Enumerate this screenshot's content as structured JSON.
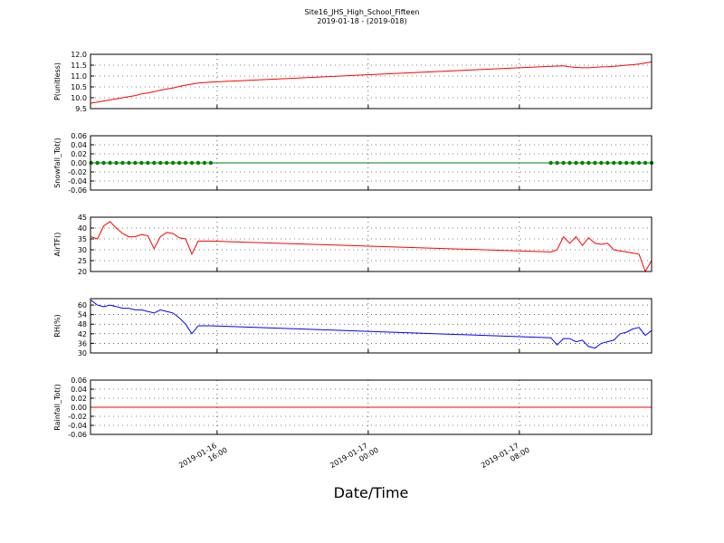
{
  "title": "Site16_JHS_High_School_Fifteen",
  "subtitle": "2019-01-18 - (2019-018)",
  "xlabel": "Date/Time",
  "xlim": [
    "2019-01-16 09:18",
    "2019-01-17 15:00"
  ],
  "xticks": [
    {
      "value": "2019-01-16 16:00",
      "label": "2019-01-16\n16:00"
    },
    {
      "value": "2019-01-17 00:00",
      "label": "2019-01-17\n00:00"
    },
    {
      "value": "2019-01-17 08:00",
      "label": "2019-01-17\n08:00"
    }
  ],
  "chart_data": [
    {
      "type": "line",
      "ylabel": "P(unitless)",
      "ylim": [
        9.5,
        12.0
      ],
      "yticks": [
        9.5,
        {
          "value": 10.0,
          "label": "10.0"
        },
        10.5,
        {
          "value": 11.0,
          "label": "11.0"
        },
        11.5,
        {
          "value": 12.0,
          "label": "12.0"
        }
      ],
      "grid": true,
      "x": [
        "2019-01-16 09:20",
        "2019-01-16 09:40",
        "2019-01-16 10:00",
        "2019-01-16 10:20",
        "2019-01-16 10:40",
        "2019-01-16 11:00",
        "2019-01-16 11:20",
        "2019-01-16 11:40",
        "2019-01-16 12:00",
        "2019-01-16 12:20",
        "2019-01-16 12:40",
        "2019-01-16 13:00",
        "2019-01-16 13:20",
        "2019-01-16 13:40",
        "2019-01-16 14:00",
        "2019-01-16 14:20",
        "2019-01-16 14:40",
        "2019-01-16 15:00",
        "2019-01-16 15:20",
        "2019-01-16 15:40",
        "2019-01-17 09:40",
        "2019-01-17 10:00",
        "2019-01-17 10:20",
        "2019-01-17 10:40",
        "2019-01-17 11:00",
        "2019-01-17 11:20",
        "2019-01-17 11:40",
        "2019-01-17 12:00",
        "2019-01-17 12:20",
        "2019-01-17 12:40",
        "2019-01-17 13:00",
        "2019-01-17 13:20",
        "2019-01-17 13:40",
        "2019-01-17 14:00",
        "2019-01-17 14:20",
        "2019-01-17 14:40",
        "2019-01-17 15:00"
      ],
      "series": [
        {
          "color": "#ff0000",
          "markers": false,
          "values": [
            9.75,
            9.8,
            9.85,
            9.9,
            9.95,
            10.0,
            10.05,
            10.1,
            10.18,
            10.22,
            10.28,
            10.35,
            10.4,
            10.45,
            10.52,
            10.58,
            10.63,
            10.68,
            10.7,
            10.72,
            11.45,
            11.46,
            11.47,
            11.42,
            11.4,
            11.38,
            11.38,
            11.4,
            11.42,
            11.43,
            11.45,
            11.47,
            11.5,
            11.52,
            11.55,
            11.6,
            11.65
          ]
        }
      ]
    },
    {
      "type": "line",
      "ylabel": "Snowfall_Tot()",
      "ylim": [
        -0.06,
        0.06
      ],
      "yticks": [
        -0.06,
        -0.04,
        -0.02,
        {
          "value": 0,
          "label": "0.00"
        },
        0.02,
        0.04,
        0.06
      ],
      "grid": true,
      "x": [
        "2019-01-16 09:20",
        "2019-01-16 09:40",
        "2019-01-16 10:00",
        "2019-01-16 10:20",
        "2019-01-16 10:40",
        "2019-01-16 11:00",
        "2019-01-16 11:20",
        "2019-01-16 11:40",
        "2019-01-16 12:00",
        "2019-01-16 12:20",
        "2019-01-16 12:40",
        "2019-01-16 13:00",
        "2019-01-16 13:20",
        "2019-01-16 13:40",
        "2019-01-16 14:00",
        "2019-01-16 14:20",
        "2019-01-16 14:40",
        "2019-01-16 15:00",
        "2019-01-16 15:20",
        "2019-01-16 15:40",
        "2019-01-17 09:40",
        "2019-01-17 10:00",
        "2019-01-17 10:20",
        "2019-01-17 10:40",
        "2019-01-17 11:00",
        "2019-01-17 11:20",
        "2019-01-17 11:40",
        "2019-01-17 12:00",
        "2019-01-17 12:20",
        "2019-01-17 12:40",
        "2019-01-17 13:00",
        "2019-01-17 13:20",
        "2019-01-17 13:40",
        "2019-01-17 14:00",
        "2019-01-17 14:20",
        "2019-01-17 14:40",
        "2019-01-17 15:00"
      ],
      "series": [
        {
          "color": "#008000",
          "markers": true,
          "values": [
            0,
            0,
            0,
            0,
            0,
            0,
            0,
            0,
            0,
            0,
            0,
            0,
            0,
            0,
            0,
            0,
            0,
            0,
            0,
            0,
            0,
            0,
            0,
            0,
            0,
            0,
            0,
            0,
            0,
            0,
            0,
            0,
            0,
            0,
            0,
            0,
            0
          ]
        }
      ]
    },
    {
      "type": "line",
      "ylabel": "AirTF()",
      "ylim": [
        20,
        45
      ],
      "yticks": [
        20,
        25,
        30,
        35,
        40,
        45
      ],
      "grid": true,
      "x": [
        "2019-01-16 09:20",
        "2019-01-16 09:40",
        "2019-01-16 10:00",
        "2019-01-16 10:20",
        "2019-01-16 10:40",
        "2019-01-16 11:00",
        "2019-01-16 11:20",
        "2019-01-16 11:40",
        "2019-01-16 12:00",
        "2019-01-16 12:20",
        "2019-01-16 12:40",
        "2019-01-16 13:00",
        "2019-01-16 13:20",
        "2019-01-16 13:40",
        "2019-01-16 14:00",
        "2019-01-16 14:20",
        "2019-01-16 14:40",
        "2019-01-16 15:00",
        "2019-01-16 15:20",
        "2019-01-16 15:40",
        "2019-01-17 09:40",
        "2019-01-17 10:00",
        "2019-01-17 10:20",
        "2019-01-17 10:40",
        "2019-01-17 11:00",
        "2019-01-17 11:20",
        "2019-01-17 11:40",
        "2019-01-17 12:00",
        "2019-01-17 12:20",
        "2019-01-17 12:40",
        "2019-01-17 13:00",
        "2019-01-17 13:20",
        "2019-01-17 13:40",
        "2019-01-17 14:00",
        "2019-01-17 14:20",
        "2019-01-17 14:40",
        "2019-01-17 15:00"
      ],
      "series": [
        {
          "color": "#ff0000",
          "markers": false,
          "values": [
            36,
            35,
            41,
            43,
            40,
            37.5,
            36,
            36,
            37,
            36.5,
            30.5,
            36,
            38,
            37.5,
            35.5,
            35,
            28,
            34,
            34,
            34,
            29,
            30,
            36,
            33,
            36,
            32,
            35.5,
            33,
            32.5,
            33,
            30,
            29.5,
            29,
            28.5,
            28,
            20,
            25
          ]
        }
      ]
    },
    {
      "type": "line",
      "ylabel": "RH(%)",
      "ylim": [
        30,
        64
      ],
      "yticks": [
        30,
        36,
        42,
        48,
        54,
        60
      ],
      "grid": true,
      "x": [
        "2019-01-16 09:20",
        "2019-01-16 09:40",
        "2019-01-16 10:00",
        "2019-01-16 10:20",
        "2019-01-16 10:40",
        "2019-01-16 11:00",
        "2019-01-16 11:20",
        "2019-01-16 11:40",
        "2019-01-16 12:00",
        "2019-01-16 12:20",
        "2019-01-16 12:40",
        "2019-01-16 13:00",
        "2019-01-16 13:20",
        "2019-01-16 13:40",
        "2019-01-16 14:00",
        "2019-01-16 14:20",
        "2019-01-16 14:40",
        "2019-01-16 15:00",
        "2019-01-16 15:20",
        "2019-01-16 15:40",
        "2019-01-17 09:40",
        "2019-01-17 10:00",
        "2019-01-17 10:20",
        "2019-01-17 10:40",
        "2019-01-17 11:00",
        "2019-01-17 11:20",
        "2019-01-17 11:40",
        "2019-01-17 12:00",
        "2019-01-17 12:20",
        "2019-01-17 12:40",
        "2019-01-17 13:00",
        "2019-01-17 13:20",
        "2019-01-17 13:40",
        "2019-01-17 14:00",
        "2019-01-17 14:20",
        "2019-01-17 14:40",
        "2019-01-17 15:00"
      ],
      "series": [
        {
          "color": "#0000ff",
          "markers": false,
          "values": [
            63,
            60,
            59,
            60,
            59,
            58,
            58,
            57,
            57,
            56,
            55,
            57,
            56,
            55,
            52,
            48,
            42,
            47,
            47,
            47,
            39.5,
            35,
            39,
            39,
            37,
            38,
            34,
            33,
            36,
            37,
            38,
            42,
            43,
            45,
            46,
            41,
            44
          ]
        }
      ]
    },
    {
      "type": "line",
      "ylabel": "Rainfall_Tot()",
      "ylim": [
        -0.06,
        0.06
      ],
      "yticks": [
        -0.06,
        -0.04,
        -0.02,
        {
          "value": 0,
          "label": "0.00"
        },
        0.02,
        0.04,
        0.06
      ],
      "grid": true,
      "x": [
        "2019-01-16 09:20",
        "2019-01-16 09:40",
        "2019-01-16 10:00",
        "2019-01-16 10:20",
        "2019-01-16 10:40",
        "2019-01-16 11:00",
        "2019-01-16 11:20",
        "2019-01-16 11:40",
        "2019-01-16 12:00",
        "2019-01-16 12:20",
        "2019-01-16 12:40",
        "2019-01-16 13:00",
        "2019-01-16 13:20",
        "2019-01-16 13:40",
        "2019-01-16 14:00",
        "2019-01-16 14:20",
        "2019-01-16 14:40",
        "2019-01-16 15:00",
        "2019-01-16 15:20",
        "2019-01-16 15:40",
        "2019-01-17 09:40",
        "2019-01-17 10:00",
        "2019-01-17 10:20",
        "2019-01-17 10:40",
        "2019-01-17 11:00",
        "2019-01-17 11:20",
        "2019-01-17 11:40",
        "2019-01-17 12:00",
        "2019-01-17 12:20",
        "2019-01-17 12:40",
        "2019-01-17 13:00",
        "2019-01-17 13:20",
        "2019-01-17 13:40",
        "2019-01-17 14:00",
        "2019-01-17 14:20",
        "2019-01-17 14:40",
        "2019-01-17 15:00"
      ],
      "series": [
        {
          "color": "#ff0000",
          "markers": false,
          "values": [
            0,
            0,
            0,
            0,
            0,
            0,
            0,
            0,
            0,
            0,
            0,
            0,
            0,
            0,
            0,
            0,
            0,
            0,
            0,
            0,
            0,
            0,
            0,
            0,
            0,
            0,
            0,
            0,
            0,
            0,
            0,
            0,
            0,
            0,
            0,
            0,
            0
          ]
        }
      ]
    }
  ]
}
